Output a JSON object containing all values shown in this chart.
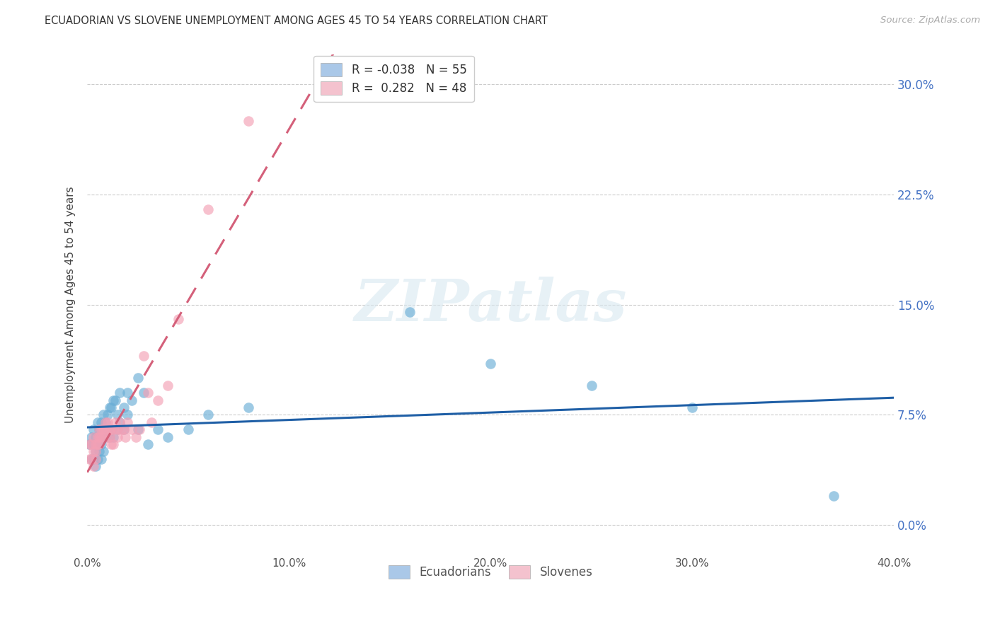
{
  "title": "ECUADORIAN VS SLOVENE UNEMPLOYMENT AMONG AGES 45 TO 54 YEARS CORRELATION CHART",
  "source": "Source: ZipAtlas.com",
  "ylabel": "Unemployment Among Ages 45 to 54 years",
  "xlim": [
    0,
    0.4
  ],
  "ylim": [
    -0.02,
    0.32
  ],
  "xticks": [
    0.0,
    0.1,
    0.2,
    0.3,
    0.4
  ],
  "xtick_labels": [
    "0.0%",
    "10.0%",
    "20.0%",
    "30.0%",
    "40.0%"
  ],
  "yticks": [
    0.0,
    0.075,
    0.15,
    0.225,
    0.3
  ],
  "ytick_labels": [
    "0.0%",
    "7.5%",
    "15.0%",
    "22.5%",
    "30.0%"
  ],
  "legend_label_ecu": "R = -0.038   N = 55",
  "legend_label_slo": "R =  0.282   N = 48",
  "ecu_color": "#6baed6",
  "ecu_legend_color": "#aac8e8",
  "slo_color": "#f4a0b5",
  "slo_legend_color": "#f4c2ce",
  "ecu_trend_color": "#1f5fa6",
  "slo_trend_color": "#d4607a",
  "watermark": "ZIPatlas",
  "background_color": "#ffffff",
  "grid_color": "#cccccc",
  "ecuadorians_x": [
    0.001,
    0.002,
    0.002,
    0.003,
    0.003,
    0.003,
    0.004,
    0.004,
    0.004,
    0.005,
    0.005,
    0.005,
    0.006,
    0.006,
    0.006,
    0.007,
    0.007,
    0.007,
    0.008,
    0.008,
    0.008,
    0.009,
    0.009,
    0.01,
    0.01,
    0.011,
    0.011,
    0.012,
    0.012,
    0.013,
    0.013,
    0.014,
    0.015,
    0.015,
    0.016,
    0.016,
    0.018,
    0.018,
    0.02,
    0.02,
    0.022,
    0.025,
    0.025,
    0.028,
    0.03,
    0.035,
    0.04,
    0.05,
    0.06,
    0.08,
    0.16,
    0.2,
    0.25,
    0.3,
    0.37
  ],
  "ecuadorians_y": [
    0.055,
    0.06,
    0.045,
    0.065,
    0.045,
    0.055,
    0.06,
    0.05,
    0.04,
    0.07,
    0.055,
    0.045,
    0.065,
    0.05,
    0.06,
    0.07,
    0.055,
    0.045,
    0.075,
    0.06,
    0.05,
    0.07,
    0.06,
    0.075,
    0.065,
    0.08,
    0.06,
    0.08,
    0.065,
    0.085,
    0.06,
    0.085,
    0.075,
    0.065,
    0.09,
    0.07,
    0.08,
    0.065,
    0.09,
    0.075,
    0.085,
    0.1,
    0.065,
    0.09,
    0.055,
    0.065,
    0.06,
    0.065,
    0.075,
    0.08,
    0.145,
    0.11,
    0.095,
    0.08,
    0.02
  ],
  "slovenes_x": [
    0.001,
    0.001,
    0.002,
    0.002,
    0.003,
    0.003,
    0.003,
    0.004,
    0.004,
    0.004,
    0.005,
    0.005,
    0.006,
    0.006,
    0.006,
    0.007,
    0.007,
    0.008,
    0.008,
    0.009,
    0.009,
    0.01,
    0.01,
    0.011,
    0.011,
    0.012,
    0.012,
    0.013,
    0.013,
    0.014,
    0.015,
    0.015,
    0.016,
    0.017,
    0.018,
    0.019,
    0.02,
    0.022,
    0.024,
    0.026,
    0.028,
    0.03,
    0.032,
    0.035,
    0.04,
    0.045,
    0.06,
    0.08
  ],
  "slovenes_y": [
    0.045,
    0.055,
    0.045,
    0.055,
    0.04,
    0.05,
    0.06,
    0.045,
    0.055,
    0.05,
    0.06,
    0.055,
    0.055,
    0.065,
    0.06,
    0.065,
    0.06,
    0.065,
    0.06,
    0.07,
    0.065,
    0.06,
    0.07,
    0.065,
    0.06,
    0.065,
    0.055,
    0.065,
    0.055,
    0.07,
    0.065,
    0.06,
    0.07,
    0.065,
    0.065,
    0.06,
    0.07,
    0.065,
    0.06,
    0.065,
    0.115,
    0.09,
    0.07,
    0.085,
    0.095,
    0.14,
    0.215,
    0.275
  ]
}
